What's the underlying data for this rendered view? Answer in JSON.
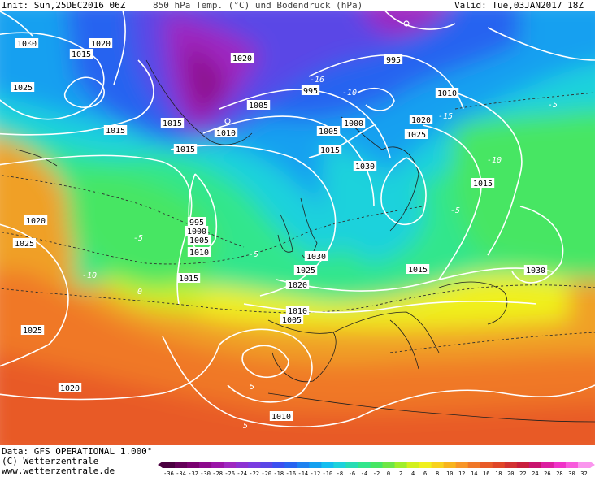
{
  "header": {
    "init": "Init: Sun,25DEC2016 06Z",
    "title": "850 hPa Temp. (°C) und Bodendruck (hPa)",
    "valid": "Valid: Tue,03JAN2017 18Z"
  },
  "footer": {
    "data_source": "Data: GFS OPERATIONAL 1.000°",
    "copyright": "(C) Wetterzentrale",
    "website": "www.wetterzentrale.de"
  },
  "colorbar": {
    "ticks": [
      "-36",
      "-34",
      "-32",
      "-30",
      "-28",
      "-26",
      "-24",
      "-22",
      "-20",
      "-18",
      "-16",
      "-14",
      "-12",
      "-10",
      "-8",
      "-6",
      "-4",
      "-2",
      "0",
      "2",
      "4",
      "6",
      "8",
      "10",
      "12",
      "14",
      "16",
      "18",
      "20",
      "22",
      "24",
      "26",
      "28",
      "30",
      "32"
    ],
    "colors": [
      "#4a0040",
      "#640058",
      "#7a0070",
      "#8c0a8c",
      "#9a14a8",
      "#9e28c0",
      "#8c32d2",
      "#7a3ce0",
      "#5a46e6",
      "#3c50f0",
      "#2864f0",
      "#1e82f0",
      "#14a0f0",
      "#14bef0",
      "#1ed2dc",
      "#28dcb4",
      "#32e68c",
      "#46e664",
      "#6ee646",
      "#a0ee2a",
      "#d2f01e",
      "#f0f01e",
      "#f8d21e",
      "#f8b41e",
      "#f89628",
      "#f07828",
      "#e85a28",
      "#e04628",
      "#d23232",
      "#c81e3c",
      "#c8146e",
      "#dc1ea0",
      "#f032c8",
      "#f85adc",
      "#fa96ee"
    ]
  },
  "isobar_labels": [
    {
      "text": "1030"
    },
    {
      "text": "1020"
    },
    {
      "text": "1015"
    },
    {
      "text": "1025"
    },
    {
      "text": "1015"
    },
    {
      "text": "1015"
    },
    {
      "text": "1020"
    },
    {
      "text": "1005"
    },
    {
      "text": "1010"
    },
    {
      "text": "1015"
    },
    {
      "text": "995"
    },
    {
      "text": "995"
    },
    {
      "text": "1010"
    },
    {
      "text": "1000"
    },
    {
      "text": "1005"
    },
    {
      "text": "1015"
    },
    {
      "text": "1020"
    },
    {
      "text": "1025"
    },
    {
      "text": "1030"
    },
    {
      "text": "1015"
    },
    {
      "text": "1020"
    },
    {
      "text": "1025"
    },
    {
      "text": "995"
    },
    {
      "text": "1000"
    },
    {
      "text": "1005"
    },
    {
      "text": "1010"
    },
    {
      "text": "1030"
    },
    {
      "text": "1025"
    },
    {
      "text": "1020"
    },
    {
      "text": "1015"
    },
    {
      "text": "1015"
    },
    {
      "text": "1030"
    },
    {
      "text": "1010"
    },
    {
      "text": "1005"
    },
    {
      "text": "1025"
    },
    {
      "text": "1020"
    },
    {
      "text": "1010"
    }
  ],
  "temp_labels": [
    {
      "text": "-16"
    },
    {
      "text": "-10"
    },
    {
      "text": "-15"
    },
    {
      "text": "-5"
    },
    {
      "text": "-10"
    },
    {
      "text": "-5"
    },
    {
      "text": "-10"
    },
    {
      "text": "-5"
    },
    {
      "text": "0"
    },
    {
      "text": "5"
    },
    {
      "text": "5"
    },
    {
      "text": "-5"
    }
  ]
}
